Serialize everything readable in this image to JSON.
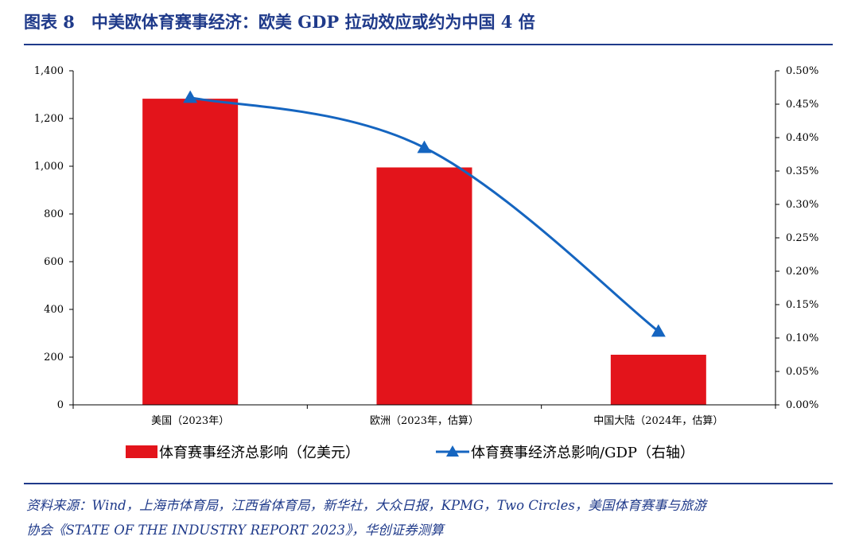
{
  "figure": {
    "title": "图表 8　中美欧体育赛事经济：欧美 GDP 拉动效应或约为中国 4 倍"
  },
  "source": {
    "line1": "资料来源：Wind，上海市体育局，江西省体育局，新华社，大众日报，KPMG，Two Circles，美国体育赛事与旅游",
    "line2": "协会《STATE OF THE INDUSTRY REPORT 2023》，华创证券测算"
  },
  "colors": {
    "bar": "#e3141b",
    "line": "#1565c0",
    "title": "#1f3a8a",
    "axis": "#000000"
  },
  "chart_data": {
    "type": "bar",
    "categories": [
      "美国（2023年）",
      "欧洲（2023年，估算）",
      "中国大陆（2024年，估算）"
    ],
    "series": [
      {
        "name": "体育赛事经济总影响（亿美元）",
        "type": "bar",
        "axis": "left",
        "values": [
          1283,
          995,
          210
        ]
      },
      {
        "name": "体育赛事经济总影响/GDP（右轴）",
        "type": "line",
        "axis": "right",
        "marker": "triangle",
        "values": [
          0.46,
          0.385,
          0.11
        ]
      }
    ],
    "y_left": {
      "ylim": [
        0,
        1400
      ],
      "ticks": [
        0,
        200,
        400,
        600,
        800,
        1000,
        1200,
        1400
      ],
      "tick_labels": [
        "0",
        "200",
        "400",
        "600",
        "800",
        "1,000",
        "1,200",
        "1,400"
      ]
    },
    "y_right": {
      "ylim": [
        0,
        0.5
      ],
      "ticks": [
        0,
        0.05,
        0.1,
        0.15,
        0.2,
        0.25,
        0.3,
        0.35,
        0.4,
        0.45,
        0.5
      ],
      "tick_labels": [
        "0.00%",
        "0.05%",
        "0.10%",
        "0.15%",
        "0.20%",
        "0.25%",
        "0.30%",
        "0.35%",
        "0.40%",
        "0.45%",
        "0.50%"
      ]
    },
    "grid": false,
    "legend_position": "bottom"
  }
}
